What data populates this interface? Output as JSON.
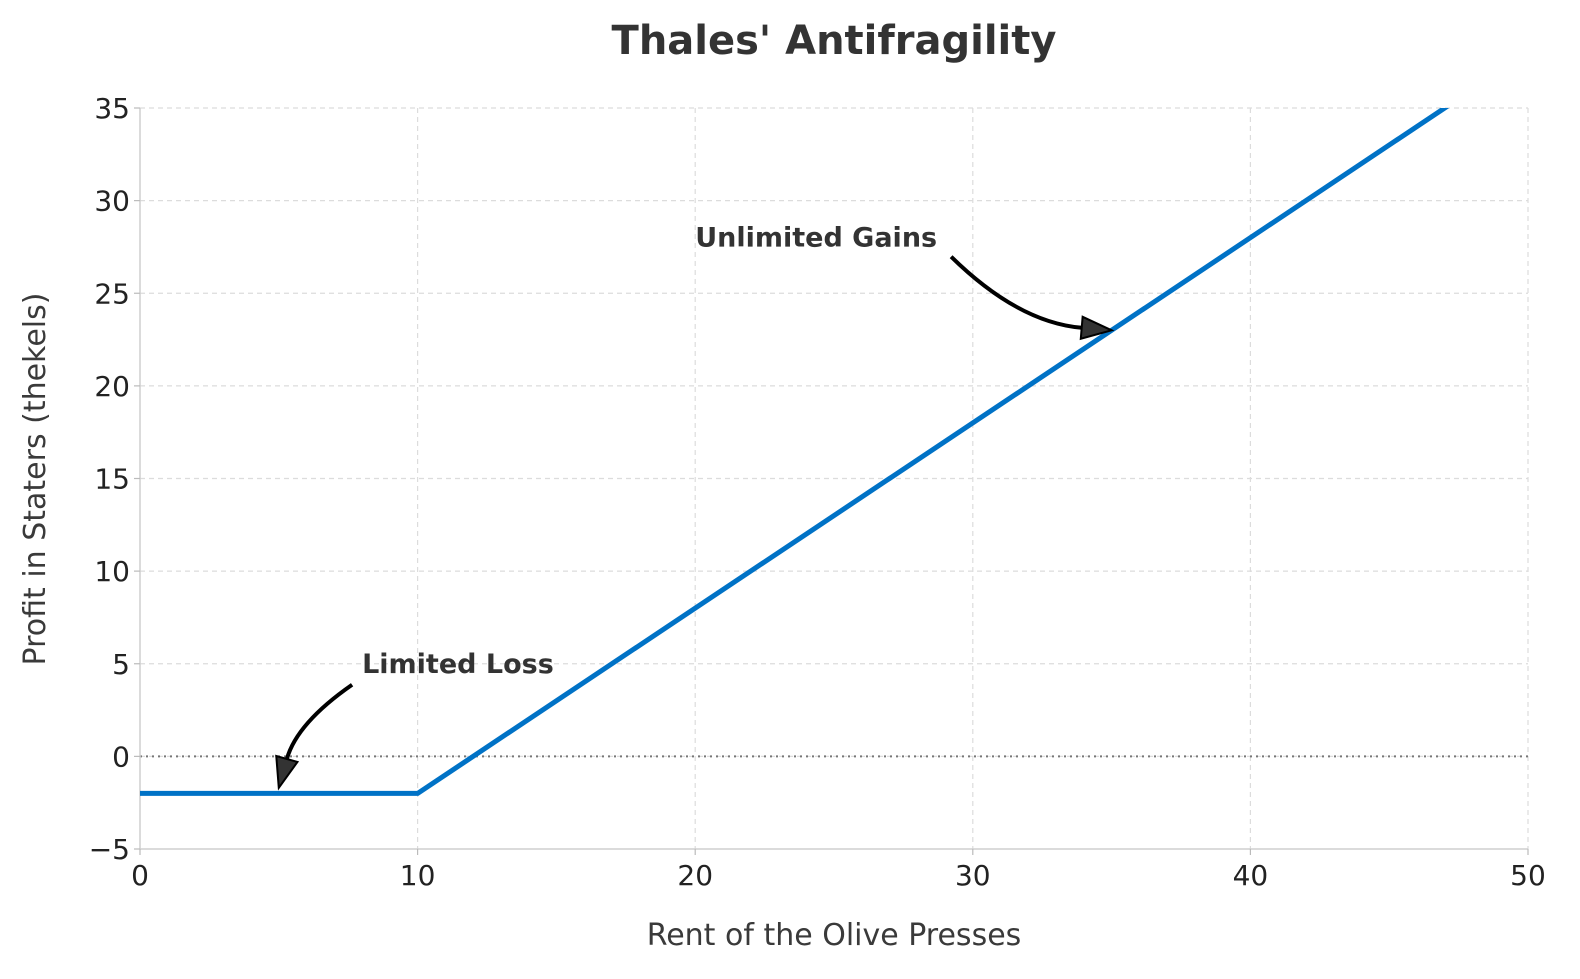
{
  "chart_data": {
    "type": "line",
    "title": "Thales' Antifragility",
    "xlabel": "Rent of the Olive Presses",
    "ylabel": "Profit in Staters (thekels)",
    "xlim": [
      0,
      50
    ],
    "ylim": [
      -5,
      35
    ],
    "xticks": [
      0,
      10,
      20,
      30,
      40,
      50
    ],
    "yticks": [
      -5,
      0,
      5,
      10,
      15,
      20,
      25,
      30,
      35
    ],
    "ytick_labels": [
      "−5",
      "0",
      "5",
      "10",
      "15",
      "20",
      "25",
      "30",
      "35"
    ],
    "grid": true,
    "series": [
      {
        "color": "#0072C6",
        "x": [
          0,
          10,
          50
        ],
        "y": [
          -2,
          -2,
          38
        ]
      }
    ],
    "reference_lines": [
      {
        "axis": "y",
        "value": 0,
        "style": "dotted",
        "color": "#777777"
      }
    ],
    "annotations": [
      {
        "text": "Unlimited Gains",
        "text_xy": [
          20,
          28
        ],
        "arrow_to": [
          35,
          23
        ]
      },
      {
        "text": "Limited Loss",
        "text_xy": [
          8,
          5
        ],
        "arrow_to": [
          5,
          -1.7
        ]
      }
    ]
  }
}
